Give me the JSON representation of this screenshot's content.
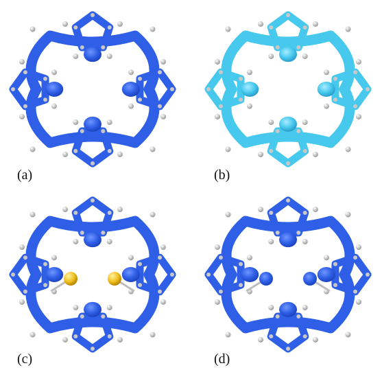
{
  "panels": [
    {
      "key": "a",
      "label": "(a)",
      "color": "#2f5fe6",
      "center_atoms": "none"
    },
    {
      "key": "b",
      "label": "(b)",
      "color": "#47c9ee",
      "center_atoms": "none"
    },
    {
      "key": "c",
      "label": "(c)",
      "color": "#2f5fe6",
      "center_atoms": "gold"
    },
    {
      "key": "d",
      "label": "(d)",
      "color": "#2f5fe6",
      "center_atoms": "blue"
    }
  ],
  "colors": {
    "surface_blue": "#2f5fe6",
    "surface_cyan": "#47c9ee",
    "gold_atom": "#f0c020",
    "hydrogen": "#e6e6e6"
  }
}
